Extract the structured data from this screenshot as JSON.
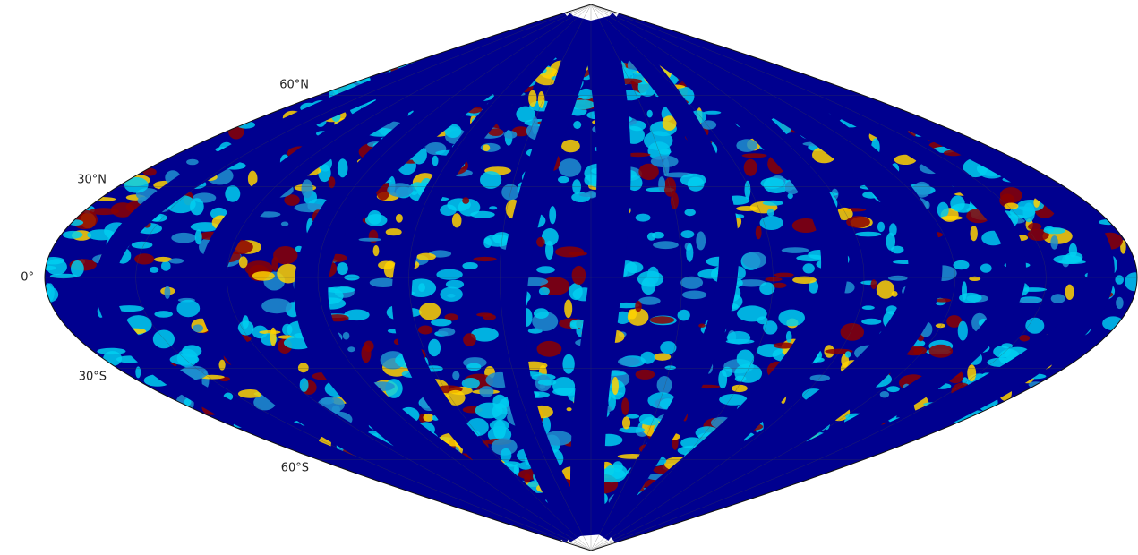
{
  "map": {
    "latitude_labels": [
      "60°N",
      "30°N",
      "0°",
      "30°S",
      "60°S"
    ]
  }
}
